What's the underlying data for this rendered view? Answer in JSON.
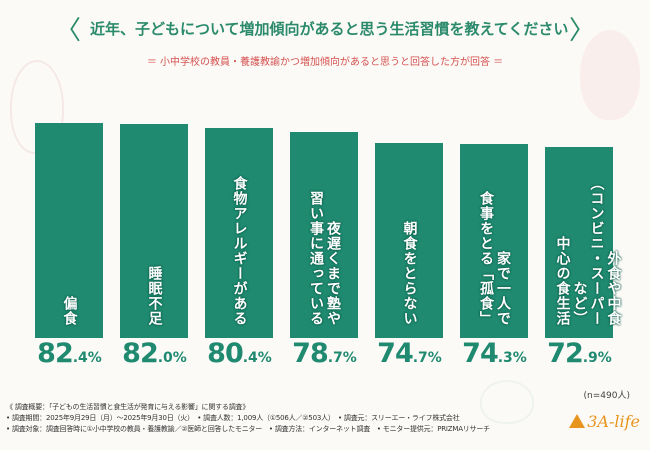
{
  "header": {
    "title": "近年、子どもについて増加傾向があると思う生活習慣を教えてください",
    "subtitle": "＝ 小中学校の教員・養護教諭かつ増加傾向があると思うと回答した方が回答 ＝"
  },
  "chart_data": {
    "type": "bar",
    "title": "近年、子どもについて増加傾向があると思う生活習慣を教えてください",
    "categories": [
      "偏食",
      "睡眠不足",
      "食物アレルギーがある",
      "夜遅くまで塾や習い事に通っている",
      "朝食をとらない",
      "家で一人で食事をとる「孤食」",
      "外食や中食（コンビニ・スーパーなど）中心の食生活"
    ],
    "label_lines": [
      [
        "偏食"
      ],
      [
        "睡眠不足"
      ],
      [
        "食物アレルギーがある"
      ],
      [
        "夜遅くまで塾や",
        "習い事に通っている"
      ],
      [
        "朝食をとらない"
      ],
      [
        "家で一人で",
        "食事をとる「孤食」"
      ],
      [
        "外食や中食",
        "（コンビニ・スーパーなど）",
        "中心の食生活"
      ]
    ],
    "values": [
      82.4,
      82.0,
      80.4,
      78.7,
      74.7,
      74.3,
      72.9
    ],
    "value_labels": [
      {
        "int": "82",
        "dec": ".4%"
      },
      {
        "int": "82",
        "dec": ".0%"
      },
      {
        "int": "80",
        "dec": ".4%"
      },
      {
        "int": "78",
        "dec": ".7%"
      },
      {
        "int": "74",
        "dec": ".7%"
      },
      {
        "int": "74",
        "dec": ".3%"
      },
      {
        "int": "72",
        "dec": ".9%"
      }
    ],
    "unit": "%",
    "ylim": [
      0,
      100
    ],
    "grid": false,
    "bar_color": "#1f8a70"
  },
  "sample_note": "(n=490人)",
  "notes": [
    "《 調査概要：「子どもの生活習慣と食生活が発育に与える影響」に関する調査》",
    "• 調査期間：2025年9月29日（月）～2025年9月30日（火）　• 調査人数：1,009人（①506人／②503人）　• 調査元：スリーエー・ライフ株式会社",
    "• 調査対象：調査回答時に①小中学校の教員・養護教諭／②医師と回答したモニター　• 調査方法：インターネット調査　• モニター提供元：PRIZMAリサーチ"
  ],
  "logo": "3A-life"
}
